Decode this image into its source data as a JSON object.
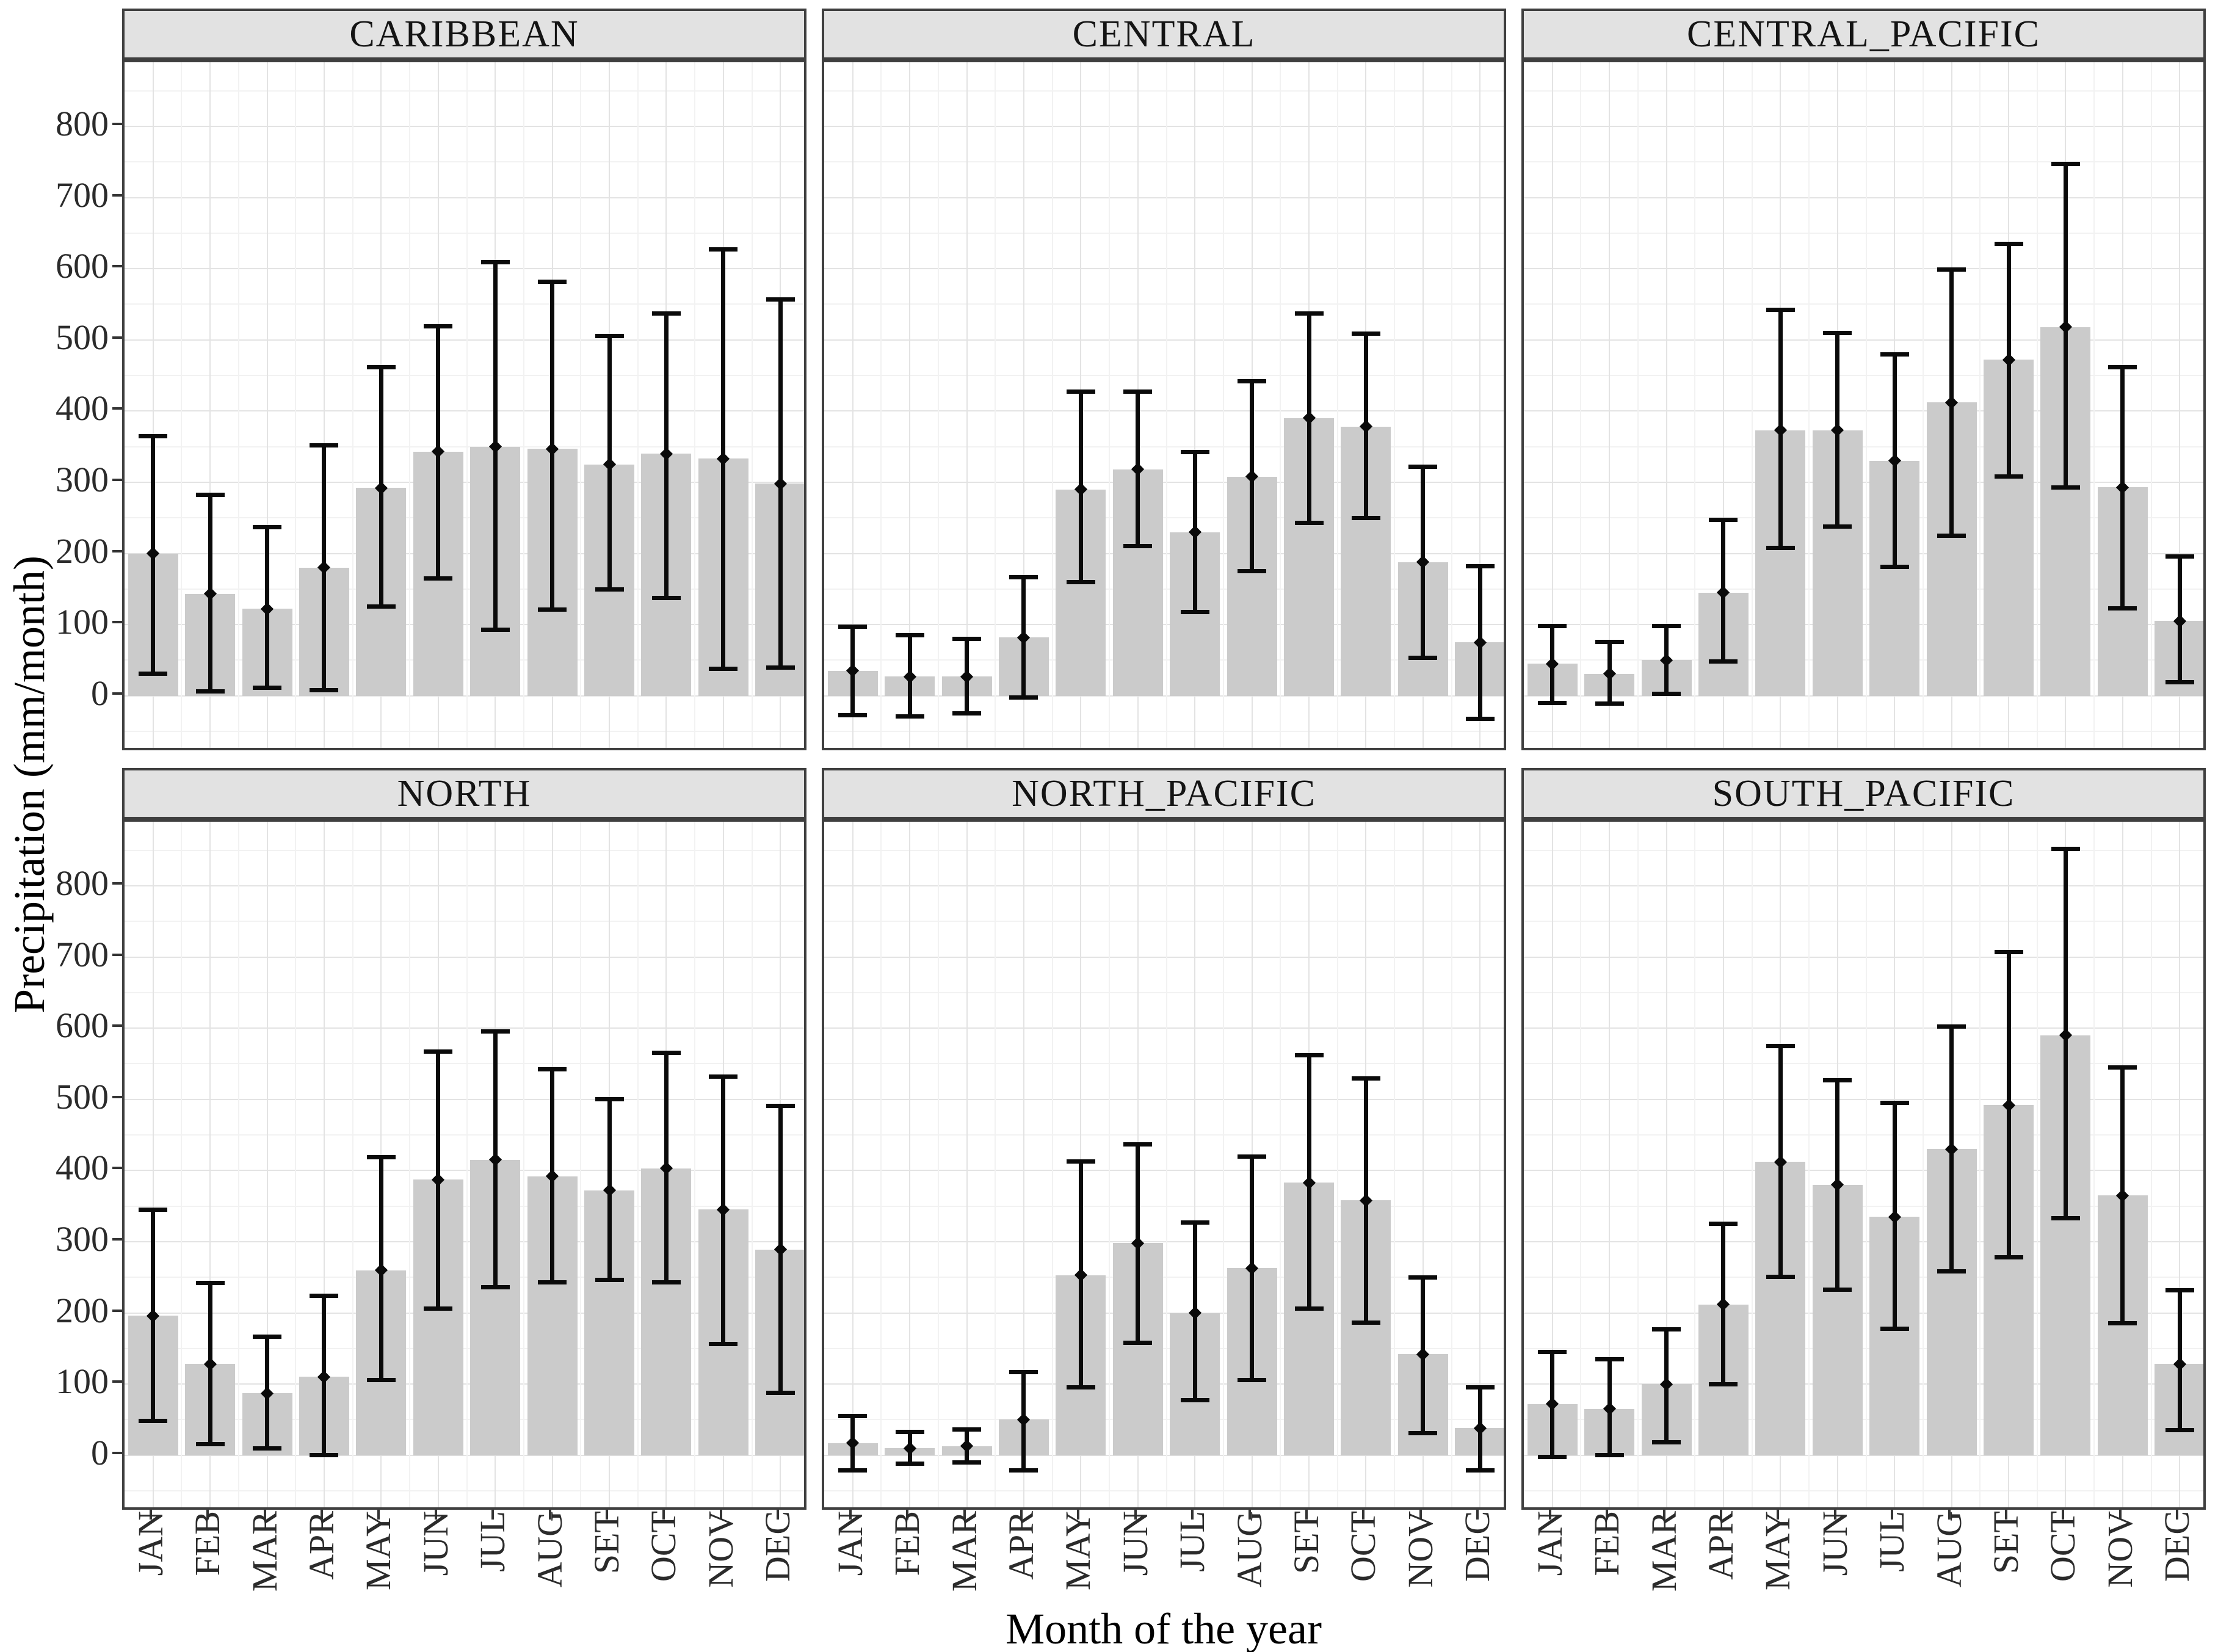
{
  "figure": {
    "kind": "faceted bar chart with error bars (precipitation climatology)"
  },
  "axes": {
    "y_title": "Precipitation (mm/month)",
    "x_title": "Month of the year",
    "y_tick_labels": [
      "0",
      "100",
      "200",
      "300",
      "400",
      "500",
      "600",
      "700",
      "800"
    ]
  },
  "chart_data": {
    "type": "bar",
    "title": "",
    "xlabel": "Month of the year",
    "ylabel": "Precipitation (mm/month)",
    "categories": [
      "JAN",
      "FEB",
      "MAR",
      "APR",
      "MAY",
      "JUN",
      "JUL",
      "AUG",
      "SET",
      "OCT",
      "NOV",
      "DEC"
    ],
    "ylim": [
      -80,
      890
    ],
    "y_major_ticks": [
      0,
      100,
      200,
      300,
      400,
      500,
      600,
      700,
      800
    ],
    "y_minor_step": 50,
    "grid": {
      "major": true,
      "minor": true
    },
    "legend": null,
    "error_bars": "mean point with lower/upper whisker caps",
    "facet_rows": [
      [
        "CARIBBEAN",
        "CENTRAL",
        "CENTRAL_PACIFIC"
      ],
      [
        "NORTH",
        "NORTH_PACIFIC",
        "SOUTH_PACIFIC"
      ]
    ],
    "facets": [
      {
        "name": "CARIBBEAN",
        "means": [
          200,
          143,
          122,
          180,
          292,
          343,
          350,
          347,
          325,
          340,
          333,
          298
        ],
        "err_low": [
          28,
          3,
          8,
          5,
          122,
          162,
          90,
          118,
          146,
          134,
          35,
          37
        ],
        "err_high": [
          368,
          285,
          240,
          355,
          465,
          522,
          612,
          585,
          508,
          540,
          630,
          560
        ]
      },
      {
        "name": "CENTRAL",
        "means": [
          35,
          27,
          27,
          82,
          290,
          318,
          230,
          308,
          390,
          378,
          188,
          75
        ],
        "err_low": [
          -30,
          -32,
          -28,
          -5,
          157,
          207,
          115,
          172,
          240,
          247,
          50,
          -35
        ],
        "err_high": [
          100,
          88,
          83,
          170,
          430,
          430,
          345,
          445,
          540,
          512,
          325,
          185
        ]
      },
      {
        "name": "CENTRAL_PACIFIC",
        "means": [
          45,
          31,
          50,
          145,
          373,
          373,
          330,
          412,
          472,
          518,
          293,
          105
        ],
        "err_low": [
          -13,
          -14,
          0,
          45,
          205,
          235,
          178,
          222,
          305,
          290,
          120,
          16
        ],
        "err_high": [
          101,
          79,
          101,
          250,
          545,
          513,
          483,
          602,
          638,
          750,
          465,
          199
        ]
      },
      {
        "name": "NORTH",
        "means": [
          196,
          128,
          87,
          110,
          260,
          387,
          415,
          392,
          372,
          403,
          345,
          289
        ],
        "err_low": [
          45,
          13,
          7,
          -3,
          103,
          203,
          233,
          240,
          243,
          240,
          153,
          85
        ],
        "err_high": [
          348,
          245,
          170,
          227,
          422,
          570,
          598,
          545,
          503,
          568,
          535,
          494
        ]
      },
      {
        "name": "NORTH_PACIFIC",
        "means": [
          17,
          10,
          13,
          50,
          253,
          298,
          200,
          263,
          383,
          358,
          142,
          38
        ],
        "err_low": [
          -24,
          -15,
          -13,
          -24,
          92,
          155,
          74,
          103,
          203,
          183,
          28,
          -24
        ],
        "err_high": [
          58,
          36,
          39,
          120,
          416,
          440,
          330,
          423,
          565,
          532,
          253,
          98
        ]
      },
      {
        "name": "SOUTH_PACIFIC",
        "means": [
          72,
          65,
          100,
          212,
          412,
          380,
          335,
          430,
          492,
          590,
          365,
          128
        ],
        "err_low": [
          -5,
          -3,
          15,
          97,
          248,
          230,
          175,
          255,
          275,
          330,
          182,
          32
        ],
        "err_high": [
          148,
          138,
          180,
          328,
          578,
          530,
          498,
          605,
          710,
          855,
          548,
          235
        ]
      }
    ],
    "colors": {
      "bar": "#cbcbcb",
      "error_bar": "#0a0a0a",
      "strip_bg": "#e2e2e2",
      "border": "#3f3f3f",
      "grid_major": "#e3e3e3",
      "grid_minor": "#f2f2f2",
      "background": "#ffffff"
    }
  }
}
